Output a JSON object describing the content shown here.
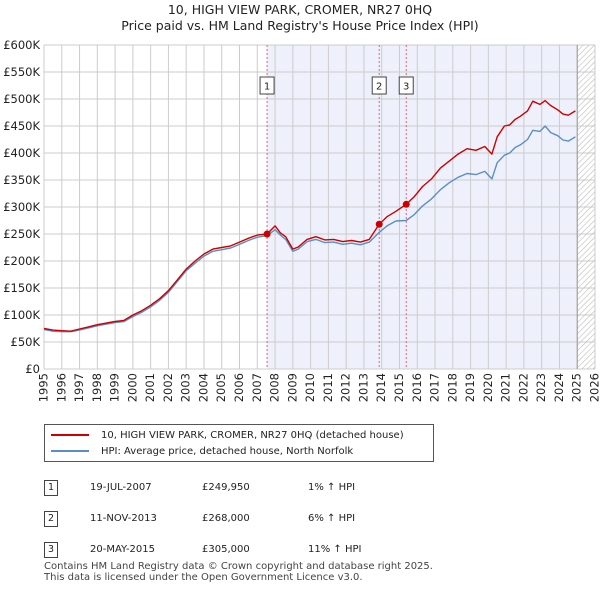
{
  "chart_data": {
    "type": "line",
    "title": "10, HIGH VIEW PARK, CROMER, NR27 0HQ",
    "subtitle": "Price paid vs. HM Land Registry's House Price Index (HPI)",
    "xlim": [
      1995,
      2026
    ],
    "ylim": [
      0,
      600000
    ],
    "x_ticks": [
      "1995",
      "1996",
      "1997",
      "1998",
      "1999",
      "2000",
      "2001",
      "2002",
      "2003",
      "2004",
      "2005",
      "2006",
      "2007",
      "2008",
      "2009",
      "2010",
      "2011",
      "2012",
      "2013",
      "2014",
      "2015",
      "2016",
      "2017",
      "2018",
      "2019",
      "2020",
      "2021",
      "2022",
      "2023",
      "2024",
      "2025",
      "2026"
    ],
    "y_ticks": [
      "£0",
      "£50K",
      "£100K",
      "£150K",
      "£200K",
      "£250K",
      "£300K",
      "£350K",
      "£400K",
      "£450K",
      "£500K",
      "£550K",
      "£600K"
    ],
    "y_tick_values": [
      0,
      50000,
      100000,
      150000,
      200000,
      250000,
      300000,
      350000,
      400000,
      450000,
      500000,
      550000,
      600000
    ],
    "ownership_shade": {
      "from": 2007.55,
      "to": 2025.0
    },
    "future_hatch_from": 2025.0,
    "series": [
      {
        "name": "10, HIGH VIEW PARK, CROMER, NR27 0HQ (detached house)",
        "color": "#cc0000",
        "x": [
          1995.0,
          1995.5,
          1996.0,
          1996.5,
          1997.0,
          1997.5,
          1998.0,
          1998.5,
          1999.0,
          1999.5,
          2000.0,
          2000.5,
          2001.0,
          2001.5,
          2002.0,
          2002.5,
          2003.0,
          2003.5,
          2004.0,
          2004.5,
          2005.0,
          2005.5,
          2006.0,
          2006.5,
          2007.0,
          2007.55,
          2008.0,
          2008.3,
          2008.6,
          2009.0,
          2009.3,
          2009.8,
          2010.3,
          2010.8,
          2011.3,
          2011.8,
          2012.3,
          2012.8,
          2013.3,
          2013.86,
          2014.3,
          2014.8,
          2015.38,
          2015.8,
          2016.3,
          2016.8,
          2017.3,
          2017.8,
          2018.3,
          2018.8,
          2019.3,
          2019.8,
          2020.2,
          2020.5,
          2020.9,
          2021.2,
          2021.5,
          2021.8,
          2022.2,
          2022.5,
          2022.9,
          2023.2,
          2023.5,
          2023.9,
          2024.2,
          2024.5,
          2024.9
        ],
        "y": [
          75000,
          72000,
          71000,
          70000,
          74000,
          78000,
          82000,
          85000,
          88000,
          90000,
          100000,
          108000,
          118000,
          130000,
          145000,
          165000,
          185000,
          200000,
          213000,
          222000,
          225000,
          228000,
          235000,
          242000,
          248000,
          249950,
          265000,
          252000,
          245000,
          222000,
          226000,
          240000,
          245000,
          239000,
          240000,
          236000,
          238000,
          235000,
          240000,
          268000,
          282000,
          292000,
          305000,
          318000,
          338000,
          352000,
          372000,
          385000,
          398000,
          408000,
          405000,
          412000,
          398000,
          430000,
          450000,
          452000,
          462000,
          468000,
          478000,
          496000,
          490000,
          497000,
          488000,
          480000,
          472000,
          470000,
          478000
        ]
      },
      {
        "name": "HPI: Average price, detached house, North Norfolk",
        "color": "#5b8ec9",
        "x": [
          1995.0,
          1995.5,
          1996.0,
          1996.5,
          1997.0,
          1997.5,
          1998.0,
          1998.5,
          1999.0,
          1999.5,
          2000.0,
          2000.5,
          2001.0,
          2001.5,
          2002.0,
          2002.5,
          2003.0,
          2003.5,
          2004.0,
          2004.5,
          2005.0,
          2005.5,
          2006.0,
          2006.5,
          2007.0,
          2007.55,
          2008.0,
          2008.3,
          2008.6,
          2009.0,
          2009.3,
          2009.8,
          2010.3,
          2010.8,
          2011.3,
          2011.8,
          2012.3,
          2012.8,
          2013.3,
          2013.86,
          2014.3,
          2014.8,
          2015.38,
          2015.8,
          2016.3,
          2016.8,
          2017.3,
          2017.8,
          2018.3,
          2018.8,
          2019.3,
          2019.8,
          2020.2,
          2020.5,
          2020.9,
          2021.2,
          2021.5,
          2021.8,
          2022.2,
          2022.5,
          2022.9,
          2023.2,
          2023.5,
          2023.9,
          2024.2,
          2024.5,
          2024.9
        ],
        "y": [
          73000,
          70000,
          69000,
          69000,
          72000,
          76000,
          80000,
          83000,
          86000,
          88000,
          97000,
          105000,
          115000,
          127000,
          142000,
          162000,
          182000,
          196000,
          209000,
          218000,
          221000,
          224000,
          231000,
          238000,
          244000,
          247000,
          258000,
          248000,
          240000,
          218000,
          222000,
          236000,
          240000,
          234000,
          235000,
          231000,
          233000,
          230000,
          235000,
          253000,
          265000,
          274000,
          275000,
          285000,
          302000,
          315000,
          332000,
          345000,
          355000,
          362000,
          360000,
          366000,
          352000,
          382000,
          396000,
          400000,
          410000,
          415000,
          425000,
          442000,
          440000,
          450000,
          438000,
          432000,
          424000,
          422000,
          430000
        ]
      }
    ],
    "sale_markers": [
      {
        "label": "1",
        "x": 2007.55,
        "y": 249950
      },
      {
        "label": "2",
        "x": 2013.86,
        "y": 268000
      },
      {
        "label": "3",
        "x": 2015.38,
        "y": 305000
      }
    ]
  },
  "legend": {
    "property": "10, HIGH VIEW PARK, CROMER, NR27 0HQ (detached house)",
    "hpi": "HPI: Average price, detached house, North Norfolk"
  },
  "sales_table": [
    {
      "num": "1",
      "date": "19-JUL-2007",
      "price": "£249,950",
      "hpi": "1% ↑ HPI"
    },
    {
      "num": "2",
      "date": "11-NOV-2013",
      "price": "£268,000",
      "hpi": "6% ↑ HPI"
    },
    {
      "num": "3",
      "date": "20-MAY-2015",
      "price": "£305,000",
      "hpi": "11% ↑ HPI"
    }
  ],
  "footer": {
    "line1": "Contains HM Land Registry data © Crown copyright and database right 2025.",
    "line2": "This data is licensed under the Open Government Licence v3.0."
  },
  "colors": {
    "property": "#cc0000",
    "hpi": "#5b8ec9",
    "shade": "#eef1fb",
    "grid": "#cccccc"
  }
}
